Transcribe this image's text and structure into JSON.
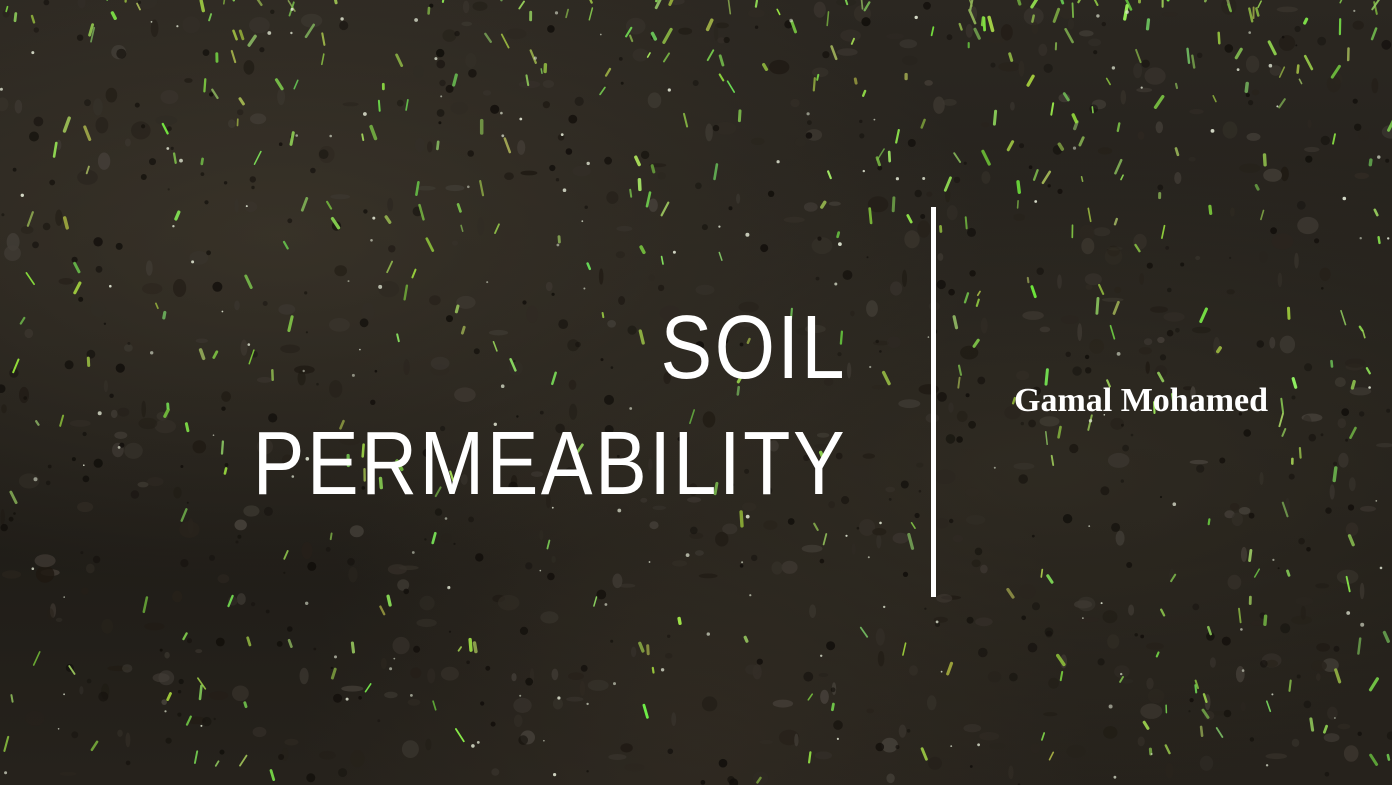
{
  "slide": {
    "title_lines": [
      "SOIL",
      "PERMEABILITY"
    ],
    "author": "Gamal Mohamed"
  },
  "colors": {
    "soil_dark": "#1d1a15",
    "soil_mid": "#2b2721",
    "sprout_green": "#8fd65a",
    "text": "#ffffff"
  }
}
